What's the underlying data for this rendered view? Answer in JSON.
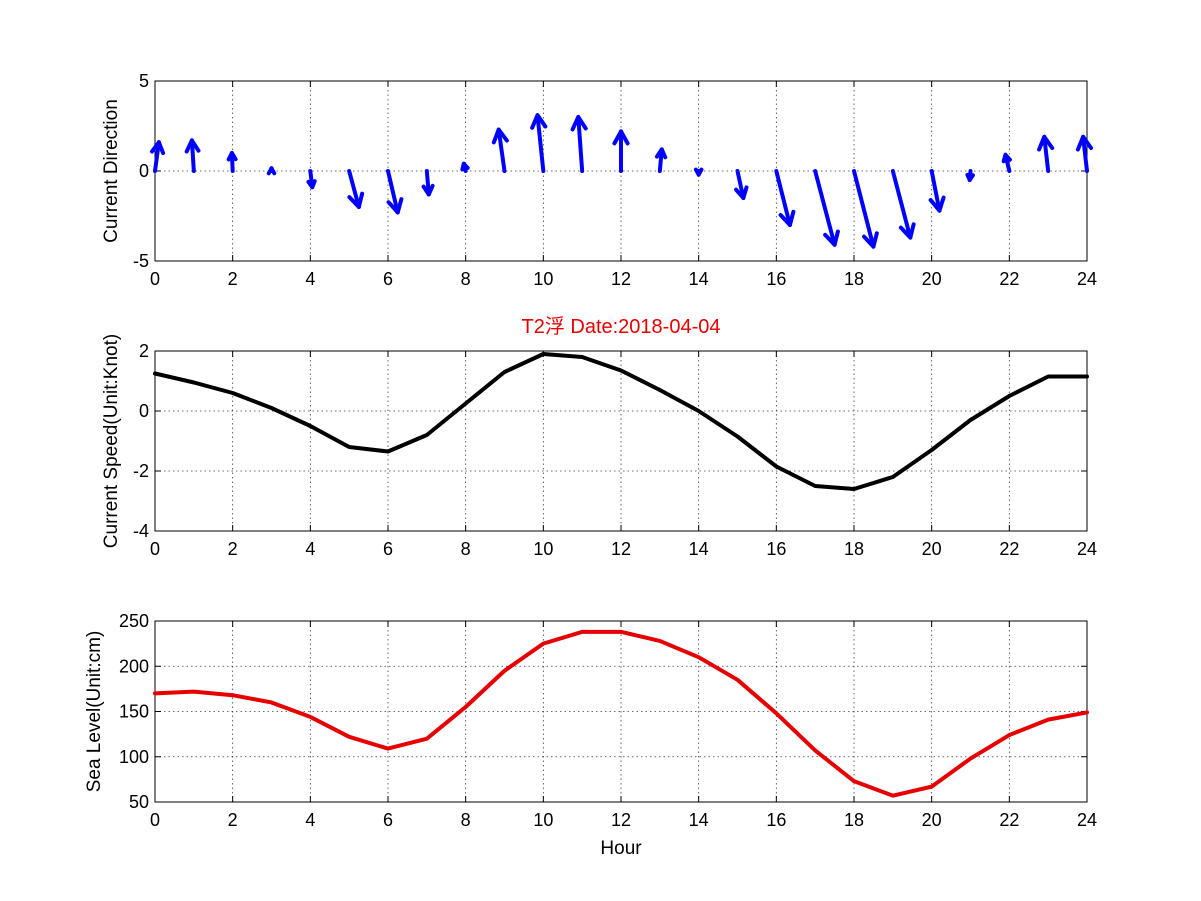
{
  "chart_data": [
    {
      "type": "quiver",
      "ylabel": "Current Direction",
      "xlim": [
        0,
        24
      ],
      "ylim": [
        -5,
        5
      ],
      "xticks": [
        0,
        2,
        4,
        6,
        8,
        10,
        12,
        14,
        16,
        18,
        20,
        22,
        24
      ],
      "yticks": [
        -5,
        0,
        5
      ],
      "grid": true,
      "arrow_color": "#0000ff",
      "arrows": [
        {
          "x": 0,
          "u": 0.1,
          "v": 1.6
        },
        {
          "x": 1,
          "u": -0.05,
          "v": 1.7
        },
        {
          "x": 2,
          "u": -0.02,
          "v": 1.0
        },
        {
          "x": 3,
          "u": 0.0,
          "v": 0.15
        },
        {
          "x": 4,
          "u": 0.05,
          "v": -0.9
        },
        {
          "x": 5,
          "u": 0.25,
          "v": -2.0
        },
        {
          "x": 6,
          "u": 0.25,
          "v": -2.3
        },
        {
          "x": 7,
          "u": 0.05,
          "v": -1.3
        },
        {
          "x": 8,
          "u": -0.05,
          "v": 0.4
        },
        {
          "x": 9,
          "u": -0.15,
          "v": 2.3
        },
        {
          "x": 10,
          "u": -0.15,
          "v": 3.1
        },
        {
          "x": 11,
          "u": -0.1,
          "v": 3.0
        },
        {
          "x": 12,
          "u": 0.0,
          "v": 2.2
        },
        {
          "x": 13,
          "u": 0.05,
          "v": 1.2
        },
        {
          "x": 14,
          "u": 0.0,
          "v": -0.2
        },
        {
          "x": 15,
          "u": 0.15,
          "v": -1.5
        },
        {
          "x": 16,
          "u": 0.35,
          "v": -3.0
        },
        {
          "x": 17,
          "u": 0.5,
          "v": -4.1
        },
        {
          "x": 18,
          "u": 0.5,
          "v": -4.2
        },
        {
          "x": 19,
          "u": 0.45,
          "v": -3.7
        },
        {
          "x": 20,
          "u": 0.2,
          "v": -2.2
        },
        {
          "x": 21,
          "u": -0.02,
          "v": -0.5
        },
        {
          "x": 22,
          "u": -0.1,
          "v": 0.9
        },
        {
          "x": 23,
          "u": -0.1,
          "v": 1.9
        },
        {
          "x": 24,
          "u": -0.1,
          "v": 1.9
        }
      ]
    },
    {
      "type": "line",
      "title": "T2浮    Date:2018-04-04",
      "title_color": "#e60000",
      "ylabel": "Current Speed(Unit:Knot)",
      "xlim": [
        0,
        24
      ],
      "ylim": [
        -4,
        2
      ],
      "xticks": [
        0,
        2,
        4,
        6,
        8,
        10,
        12,
        14,
        16,
        18,
        20,
        22,
        24
      ],
      "yticks": [
        -4,
        -2,
        0,
        2
      ],
      "grid": true,
      "series": [
        {
          "color": "#000000",
          "x": [
            0,
            1,
            2,
            3,
            4,
            5,
            6,
            7,
            8,
            9,
            10,
            11,
            12,
            13,
            14,
            15,
            16,
            17,
            18,
            19,
            20,
            21,
            22,
            23,
            24
          ],
          "y": [
            1.25,
            0.95,
            0.6,
            0.1,
            -0.5,
            -1.2,
            -1.35,
            -0.8,
            0.25,
            1.3,
            1.9,
            1.8,
            1.35,
            0.7,
            0.0,
            -0.85,
            -1.85,
            -2.5,
            -2.6,
            -2.2,
            -1.3,
            -0.3,
            0.5,
            1.15,
            1.15
          ]
        }
      ]
    },
    {
      "type": "line",
      "ylabel": "Sea Level(Unit:cm)",
      "xlabel": "Hour",
      "xlim": [
        0,
        24
      ],
      "ylim": [
        50,
        250
      ],
      "xticks": [
        0,
        2,
        4,
        6,
        8,
        10,
        12,
        14,
        16,
        18,
        20,
        22,
        24
      ],
      "yticks": [
        50,
        100,
        150,
        200,
        250
      ],
      "grid": true,
      "series": [
        {
          "color": "#e60000",
          "x": [
            0,
            1,
            2,
            3,
            4,
            5,
            6,
            7,
            8,
            9,
            10,
            11,
            12,
            13,
            14,
            15,
            16,
            17,
            18,
            19,
            20,
            21,
            22,
            23,
            24
          ],
          "y": [
            170,
            172,
            168,
            160,
            144,
            122,
            109,
            120,
            155,
            195,
            225,
            238,
            238,
            228,
            210,
            185,
            148,
            107,
            73,
            57,
            67,
            98,
            124,
            141,
            149
          ]
        }
      ]
    }
  ]
}
